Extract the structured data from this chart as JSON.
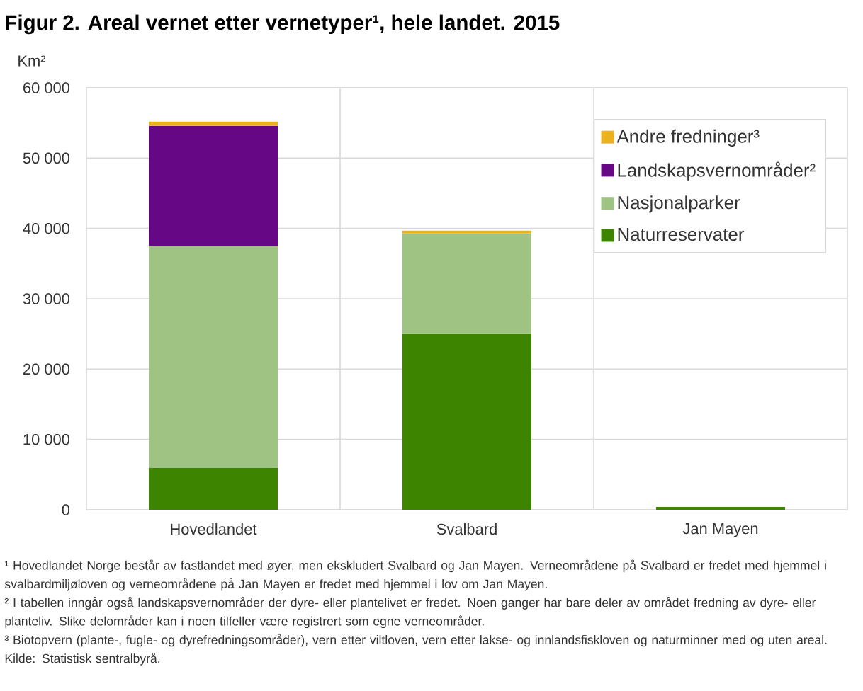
{
  "chart_data": {
    "type": "bar",
    "stacked": true,
    "title": "Figur 2. Areal vernet etter vernetyper¹, hele landet. 2015",
    "ylabel": "Km²",
    "categories": [
      "Hovedlandet",
      "Svalbard",
      "Jan Mayen"
    ],
    "series": [
      {
        "name": "Naturreservater",
        "color": "#3d8500",
        "values": [
          6000,
          25000,
          400
        ]
      },
      {
        "name": "Nasjonalparker",
        "color": "#9fc382",
        "values": [
          31500,
          14300,
          null
        ]
      },
      {
        "name": "Landskapsvernområder²",
        "color": "#660885",
        "values": [
          17100,
          null,
          null
        ]
      },
      {
        "name": "Andre fredninger³",
        "color": "#ebb21f",
        "values": [
          600,
          400,
          null
        ]
      }
    ],
    "ylim": [
      0,
      60000
    ],
    "yticks": [
      0,
      {
        "value": 10000,
        "label": "10 000"
      },
      {
        "value": 20000,
        "label": "20 000"
      },
      {
        "value": 30000,
        "label": "30 000"
      },
      {
        "value": 40000,
        "label": "40 000"
      },
      {
        "value": 50000,
        "label": "50 000"
      },
      {
        "value": 60000,
        "label": "60 000"
      }
    ],
    "grid": true,
    "legend": "top right",
    "annotations": [
      "¹ Hovedlandet Norge består av fastlandet med øyer, men ekskludert Svalbard og Jan Mayen. Verneområdene på Svalbard er fredet med hjemmel i svalbardmiljøloven og verneområdene på Jan Mayen er fredet med hjemmel i lov om Jan Mayen.",
      "² I tabellen inngår også landskapsvernområder der dyre- eller plantelivet er fredet. Noen ganger har bare deler av området fredning av dyre- eller planteliv. Slike delområder kan i noen tilfeller være registrert som egne verneområder.",
      "³ Biotopvern (plante-, fugle- og dyrefredningsområder), vern etter viltloven, vern etter lakse- og innlandsfiskloven og naturminner med og uten areal.",
      "Kilde: Statistisk sentralbyrå."
    ]
  }
}
